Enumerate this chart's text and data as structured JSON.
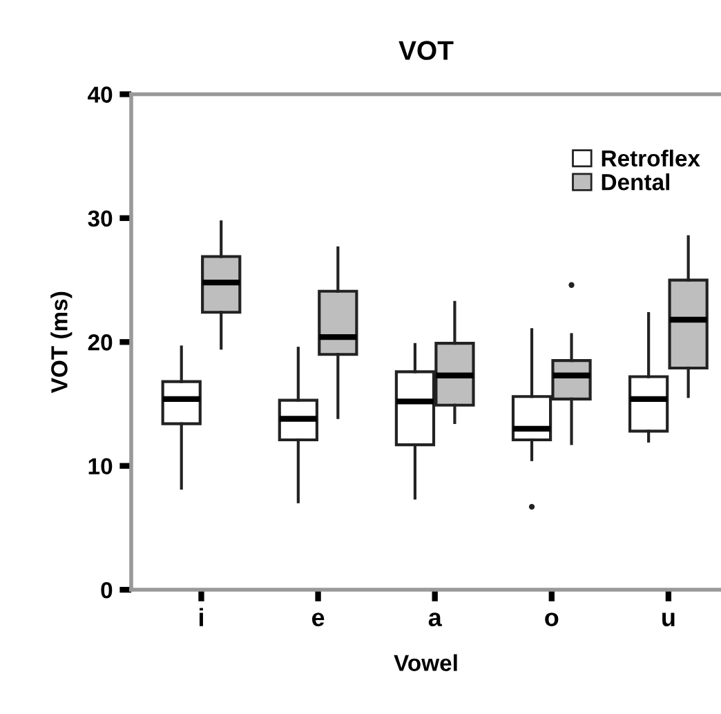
{
  "chart_data": {
    "type": "box",
    "title": "VOT",
    "xlabel": "Vowel",
    "ylabel": "VOT (ms)",
    "categories": [
      "i",
      "e",
      "a",
      "o",
      "u"
    ],
    "ylim": [
      0,
      40
    ],
    "yticks": [
      0,
      10,
      20,
      30,
      40
    ],
    "grid": false,
    "legend": "top right",
    "series": [
      {
        "name": "Retroflex",
        "color": "#ffffff",
        "boxes": [
          {
            "low": 8.2,
            "q1": 13.4,
            "median": 15.4,
            "q3": 16.8,
            "high": 19.6
          },
          {
            "low": 7.1,
            "q1": 12.1,
            "median": 13.8,
            "q3": 15.3,
            "high": 19.5
          },
          {
            "low": 7.4,
            "q1": 11.7,
            "median": 15.2,
            "q3": 17.6,
            "high": 19.8
          },
          {
            "low": 10.5,
            "q1": 12.1,
            "median": 13.0,
            "q3": 15.6,
            "high": 21.0,
            "outliers": [
              6.7
            ]
          },
          {
            "low": 12.0,
            "q1": 12.8,
            "median": 15.4,
            "q3": 17.2,
            "high": 22.3
          }
        ]
      },
      {
        "name": "Dental",
        "color": "#bebebe",
        "boxes": [
          {
            "low": 19.5,
            "q1": 22.4,
            "median": 24.8,
            "q3": 26.9,
            "high": 29.7
          },
          {
            "low": 13.9,
            "q1": 19.0,
            "median": 20.4,
            "q3": 24.1,
            "high": 27.6
          },
          {
            "low": 13.5,
            "q1": 14.9,
            "median": 17.3,
            "q3": 19.9,
            "high": 23.2
          },
          {
            "low": 11.8,
            "q1": 15.4,
            "median": 17.3,
            "q3": 18.5,
            "high": 20.6,
            "outliers": [
              24.6
            ]
          },
          {
            "low": 15.6,
            "q1": 17.9,
            "median": 21.8,
            "q3": 25.0,
            "high": 28.5
          }
        ]
      }
    ]
  }
}
